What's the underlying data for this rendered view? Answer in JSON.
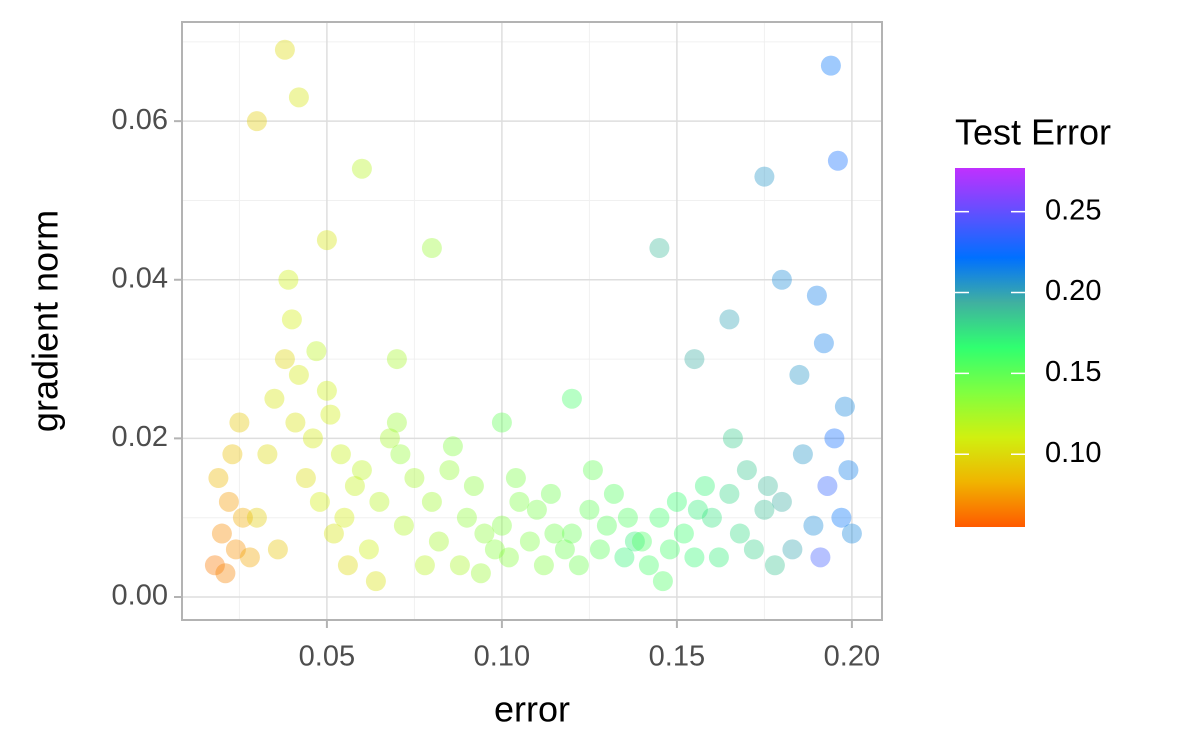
{
  "chart_data": {
    "type": "scatter",
    "x_label": "error",
    "y_label": "gradient norm",
    "legend_title": "Test Error",
    "xlim": [
      0.0086,
      0.2086
    ],
    "ylim": [
      -0.0029,
      0.0725
    ],
    "xticks": [
      0.05,
      {
        "value": 0.1,
        "label": "0.10"
      },
      0.15,
      {
        "value": 0.2,
        "label": "0.20"
      }
    ],
    "yticks": [
      {
        "value": 0,
        "label": "0.00"
      },
      {
        "value": 0.02,
        "label": "0.02"
      },
      {
        "value": 0.04,
        "label": "0.04"
      },
      {
        "value": 0.06,
        "label": "0.06"
      }
    ],
    "grid": true,
    "colorbar_lim": [
      0.055,
      0.277
    ],
    "colorbar_ticks": [
      {
        "value": 0.1,
        "label": "0.10"
      },
      0.15,
      {
        "value": 0.2,
        "label": "0.20"
      },
      0.25
    ],
    "colormap": [
      "#ff5a00",
      "#f0b400",
      "#d0f010",
      "#80ff40",
      "#30ff70",
      "#40b0a0",
      "#0070ff",
      "#6050ff",
      "#c030ff"
    ],
    "x": [
      0.018,
      0.02,
      0.022,
      0.024,
      0.026,
      0.019,
      0.021,
      0.023,
      0.025,
      0.028,
      0.03,
      0.033,
      0.035,
      0.038,
      0.04,
      0.042,
      0.044,
      0.036,
      0.039,
      0.041,
      0.046,
      0.048,
      0.05,
      0.052,
      0.054,
      0.056,
      0.058,
      0.047,
      0.051,
      0.055,
      0.06,
      0.062,
      0.065,
      0.068,
      0.07,
      0.072,
      0.075,
      0.078,
      0.064,
      0.071,
      0.08,
      0.082,
      0.085,
      0.088,
      0.09,
      0.092,
      0.095,
      0.098,
      0.086,
      0.094,
      0.1,
      0.102,
      0.105,
      0.108,
      0.11,
      0.112,
      0.115,
      0.118,
      0.104,
      0.114,
      0.12,
      0.122,
      0.125,
      0.128,
      0.13,
      0.132,
      0.135,
      0.138,
      0.126,
      0.136,
      0.14,
      0.142,
      0.145,
      0.148,
      0.15,
      0.152,
      0.155,
      0.158,
      0.146,
      0.156,
      0.16,
      0.162,
      0.165,
      0.168,
      0.17,
      0.172,
      0.175,
      0.178,
      0.166,
      0.176,
      0.18,
      0.183,
      0.186,
      0.189,
      0.191,
      0.193,
      0.195,
      0.197,
      0.199,
      0.2,
      0.03,
      0.038,
      0.042,
      0.06,
      0.08,
      0.145,
      0.175,
      0.19,
      0.194,
      0.196,
      0.155,
      0.165,
      0.18,
      0.185,
      0.192,
      0.198,
      0.12,
      0.1,
      0.05,
      0.07
    ],
    "values": [
      0.004,
      0.008,
      0.012,
      0.006,
      0.01,
      0.015,
      0.003,
      0.018,
      0.022,
      0.005,
      0.01,
      0.018,
      0.025,
      0.03,
      0.035,
      0.028,
      0.015,
      0.006,
      0.04,
      0.022,
      0.02,
      0.012,
      0.026,
      0.008,
      0.018,
      0.004,
      0.014,
      0.031,
      0.023,
      0.01,
      0.016,
      0.006,
      0.012,
      0.02,
      0.022,
      0.009,
      0.015,
      0.004,
      0.002,
      0.018,
      0.012,
      0.007,
      0.016,
      0.004,
      0.01,
      0.014,
      0.008,
      0.006,
      0.019,
      0.003,
      0.009,
      0.005,
      0.012,
      0.007,
      0.011,
      0.004,
      0.008,
      0.006,
      0.015,
      0.013,
      0.008,
      0.004,
      0.011,
      0.006,
      0.009,
      0.013,
      0.005,
      0.007,
      0.016,
      0.01,
      0.007,
      0.004,
      0.01,
      0.006,
      0.012,
      0.008,
      0.005,
      0.014,
      0.002,
      0.011,
      0.01,
      0.005,
      0.013,
      0.008,
      0.016,
      0.006,
      0.011,
      0.004,
      0.02,
      0.014,
      0.012,
      0.006,
      0.018,
      0.009,
      0.005,
      0.014,
      0.02,
      0.01,
      0.016,
      0.008,
      0.06,
      0.069,
      0.063,
      0.054,
      0.044,
      0.044,
      0.053,
      0.038,
      0.067,
      0.055,
      0.03,
      0.035,
      0.04,
      0.028,
      0.032,
      0.024,
      0.025,
      0.022,
      0.045,
      0.03
    ],
    "color_values": [
      0.065,
      0.07,
      0.075,
      0.072,
      0.08,
      0.085,
      0.068,
      0.088,
      0.092,
      0.078,
      0.095,
      0.1,
      0.105,
      0.098,
      0.11,
      0.108,
      0.102,
      0.09,
      0.112,
      0.104,
      0.108,
      0.11,
      0.112,
      0.105,
      0.114,
      0.1,
      0.115,
      0.118,
      0.111,
      0.109,
      0.118,
      0.112,
      0.12,
      0.125,
      0.13,
      0.122,
      0.126,
      0.119,
      0.104,
      0.132,
      0.128,
      0.126,
      0.132,
      0.124,
      0.133,
      0.135,
      0.134,
      0.136,
      0.138,
      0.13,
      0.138,
      0.136,
      0.14,
      0.139,
      0.142,
      0.138,
      0.144,
      0.146,
      0.141,
      0.145,
      0.148,
      0.146,
      0.15,
      0.152,
      0.153,
      0.155,
      0.17,
      0.172,
      0.149,
      0.156,
      0.158,
      0.16,
      0.162,
      0.161,
      0.165,
      0.164,
      0.168,
      0.17,
      0.157,
      0.172,
      0.175,
      0.172,
      0.18,
      0.178,
      0.185,
      0.182,
      0.188,
      0.186,
      0.184,
      0.19,
      0.195,
      0.198,
      0.205,
      0.21,
      0.24,
      0.235,
      0.225,
      0.22,
      0.215,
      0.212,
      0.095,
      0.1,
      0.105,
      0.12,
      0.13,
      0.19,
      0.205,
      0.215,
      0.22,
      0.225,
      0.195,
      0.2,
      0.21,
      0.205,
      0.215,
      0.212,
      0.16,
      0.15,
      0.105,
      0.125
    ]
  }
}
